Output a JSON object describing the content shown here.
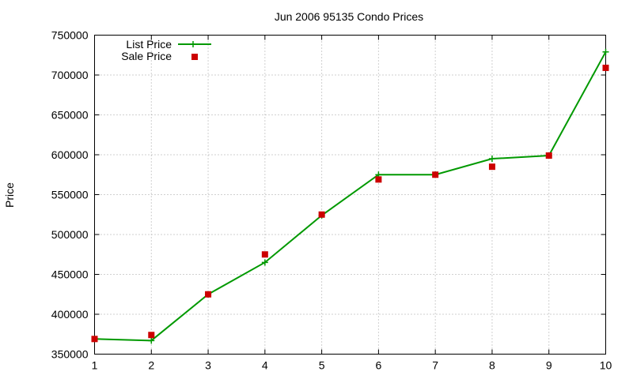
{
  "chart_data": {
    "type": "line",
    "title": "Jun 2006 95135 Condo Prices",
    "xlabel": "",
    "ylabel": "Price",
    "x": [
      1,
      2,
      3,
      4,
      5,
      6,
      7,
      8,
      9,
      10
    ],
    "xlim": [
      1,
      10
    ],
    "ylim": [
      350000,
      750000
    ],
    "x_ticks": [
      "1",
      "2",
      "3",
      "4",
      "5",
      "6",
      "7",
      "8",
      "9",
      "10"
    ],
    "y_ticks": [
      "350000",
      "400000",
      "450000",
      "500000",
      "550000",
      "600000",
      "650000",
      "700000",
      "750000"
    ],
    "grid": true,
    "legend_position": "top-left",
    "series": [
      {
        "name": "List Price",
        "style": "line-with-plus-markers",
        "color": "#009900",
        "values": [
          369000,
          367000,
          425000,
          465000,
          524000,
          575000,
          575000,
          595000,
          599000,
          729000
        ]
      },
      {
        "name": "Sale Price",
        "style": "square-markers",
        "color": "#cc0000",
        "values": [
          369000,
          374000,
          425000,
          475000,
          525000,
          569000,
          575000,
          585000,
          599000,
          709000
        ]
      }
    ]
  }
}
